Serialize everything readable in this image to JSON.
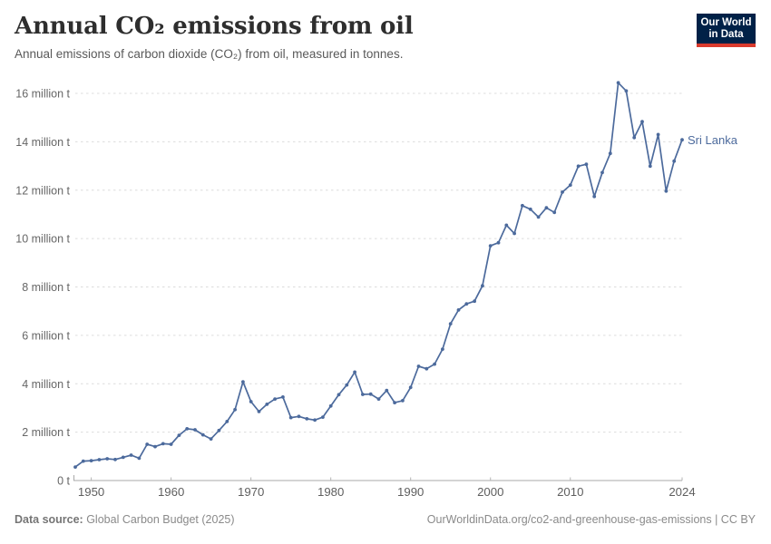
{
  "header": {
    "title": "Annual CO₂ emissions from oil",
    "subtitle": "Annual emissions of carbon dioxide (CO₂) from oil, measured in tonnes.",
    "logo": {
      "line1": "Our World",
      "line2": "in Data",
      "bg_color": "#002147",
      "accent_color": "#D93A2D"
    }
  },
  "chart_data": {
    "type": "line",
    "title": "Annual CO₂ emissions from oil",
    "xlabel": "",
    "ylabel": "",
    "unit": "tonnes",
    "xlim": [
      1948,
      2024
    ],
    "ylim": [
      0,
      16.6
    ],
    "grid": "dashed horizontal",
    "legend_position": "end-of-line label",
    "x_ticks": [
      1950,
      1960,
      1970,
      1980,
      1990,
      2000,
      2010,
      2024
    ],
    "y_tick_values": [
      0,
      2,
      4,
      6,
      8,
      10,
      12,
      14,
      16
    ],
    "y_tick_labels": [
      "0 t",
      "2 million t",
      "4 million t",
      "6 million t",
      "8 million t",
      "10 million t",
      "12 million t",
      "14 million t",
      "16 million t"
    ],
    "series": [
      {
        "name": "Sri Lanka",
        "color": "#4C6A9C",
        "unit": "million tonnes",
        "years": [
          1948,
          1949,
          1950,
          1951,
          1952,
          1953,
          1954,
          1955,
          1956,
          1957,
          1958,
          1959,
          1960,
          1961,
          1962,
          1963,
          1964,
          1965,
          1966,
          1967,
          1968,
          1969,
          1970,
          1971,
          1972,
          1973,
          1974,
          1975,
          1976,
          1977,
          1978,
          1979,
          1980,
          1981,
          1982,
          1983,
          1984,
          1985,
          1986,
          1987,
          1988,
          1989,
          1990,
          1991,
          1992,
          1993,
          1994,
          1995,
          1996,
          1997,
          1998,
          1999,
          2000,
          2001,
          2002,
          2003,
          2004,
          2005,
          2006,
          2007,
          2008,
          2009,
          2010,
          2011,
          2012,
          2013,
          2014,
          2015,
          2016,
          2017,
          2018,
          2019,
          2020,
          2021,
          2022,
          2023,
          2024
        ],
        "values": [
          0.56,
          0.8,
          0.82,
          0.86,
          0.9,
          0.87,
          0.96,
          1.05,
          0.92,
          1.5,
          1.4,
          1.52,
          1.5,
          1.87,
          2.14,
          2.1,
          1.89,
          1.72,
          2.07,
          2.44,
          2.93,
          4.08,
          3.26,
          2.85,
          3.15,
          3.37,
          3.45,
          2.6,
          2.65,
          2.55,
          2.5,
          2.62,
          3.08,
          3.55,
          3.95,
          4.48,
          3.56,
          3.57,
          3.37,
          3.72,
          3.22,
          3.3,
          3.85,
          4.72,
          4.62,
          4.81,
          5.43,
          6.48,
          7.05,
          7.3,
          7.41,
          8.05,
          9.7,
          9.83,
          10.55,
          10.21,
          11.36,
          11.21,
          10.89,
          11.27,
          11.08,
          11.92,
          12.21,
          12.99,
          13.07,
          11.74,
          12.73,
          13.52,
          16.44,
          16.1,
          14.17,
          14.83,
          12.99,
          14.3,
          11.96,
          13.2,
          14.08
        ]
      }
    ]
  },
  "footer": {
    "source_label": "Data source:",
    "source_text": " Global Carbon Budget (2025)",
    "link_text": "OurWorldinData.org/co2-and-greenhouse-gas-emissions | CC BY"
  }
}
